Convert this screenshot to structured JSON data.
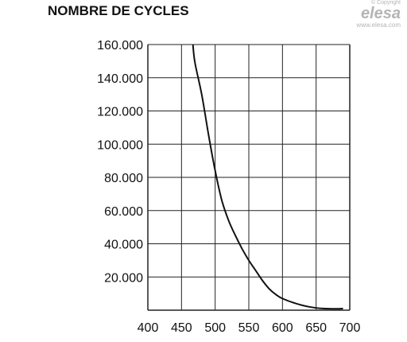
{
  "header": {
    "brand_copyright": "© Copyright",
    "brand_logo": "elesa",
    "brand_site": "www.elesa.com"
  },
  "chart_data": {
    "type": "line",
    "title": "NOMBRE DE CYCLES",
    "xlabel": "",
    "ylabel": "",
    "xlim": [
      400,
      700
    ],
    "ylim": [
      0,
      160000
    ],
    "x_ticks": [
      "400",
      "450",
      "500",
      "550",
      "600",
      "650",
      "700"
    ],
    "y_ticks": [
      "20.000",
      "40.000",
      "60.000",
      "80.000",
      "100.000",
      "120.000",
      "140.000",
      "160.000"
    ],
    "grid": true,
    "legend": "none",
    "colors": {
      "curve": "#111111",
      "grid": "#222222"
    },
    "series": [
      {
        "x": [
          467,
          470,
          480,
          490,
          500,
          510,
          520,
          530,
          540,
          550,
          560,
          570,
          580,
          590,
          600,
          620,
          640,
          660,
          680,
          690
        ],
        "y": [
          160000,
          149000,
          130000,
          106000,
          84000,
          66000,
          54000,
          45000,
          37000,
          30000,
          24000,
          18000,
          13000,
          9500,
          7000,
          4000,
          2000,
          1000,
          800,
          1000
        ]
      }
    ]
  }
}
